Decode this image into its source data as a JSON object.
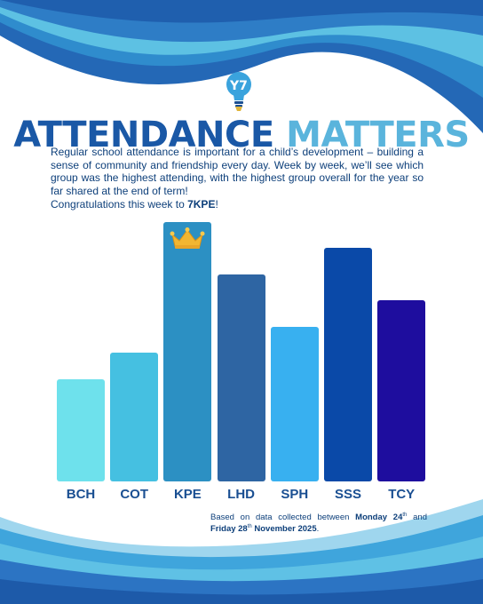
{
  "logo": {
    "text": "Y7",
    "icon": "y7-lightbulb-logo"
  },
  "title": {
    "part1": "ATTENDANCE",
    "part2": "MATTERS"
  },
  "intro": "Regular school attendance is important for a child’s development – building a sense of community and friendship every day. Week by week, we’ll see which group was the highest attending, with the highest group overall for the year so far shared at the end of term!",
  "congrats": {
    "prefix": "Congratulations this week to ",
    "group": "7KPE",
    "suffix": "!"
  },
  "winner_icon": "crown-icon",
  "footnote": {
    "prefix": "Based on data collected between ",
    "start_day": "Monday 24",
    "start_sup": "th",
    "and": " and ",
    "end_day": "Friday 28",
    "end_sup": "th",
    "end_rest": " November 2025",
    "suffix": "."
  },
  "chart_data": {
    "type": "bar",
    "categories": [
      "BCH",
      "COT",
      "KPE",
      "LHD",
      "SPH",
      "SSS",
      "TCY"
    ],
    "values": [
      39,
      49,
      99,
      79,
      59,
      89,
      69
    ],
    "bar_colors": [
      "#6ee1ec",
      "#45c0e1",
      "#2c90c3",
      "#2e65a3",
      "#38b0f0",
      "#0a49a8",
      "#1e0d9e"
    ],
    "ylim": [
      0,
      100
    ],
    "winner": "KPE"
  }
}
